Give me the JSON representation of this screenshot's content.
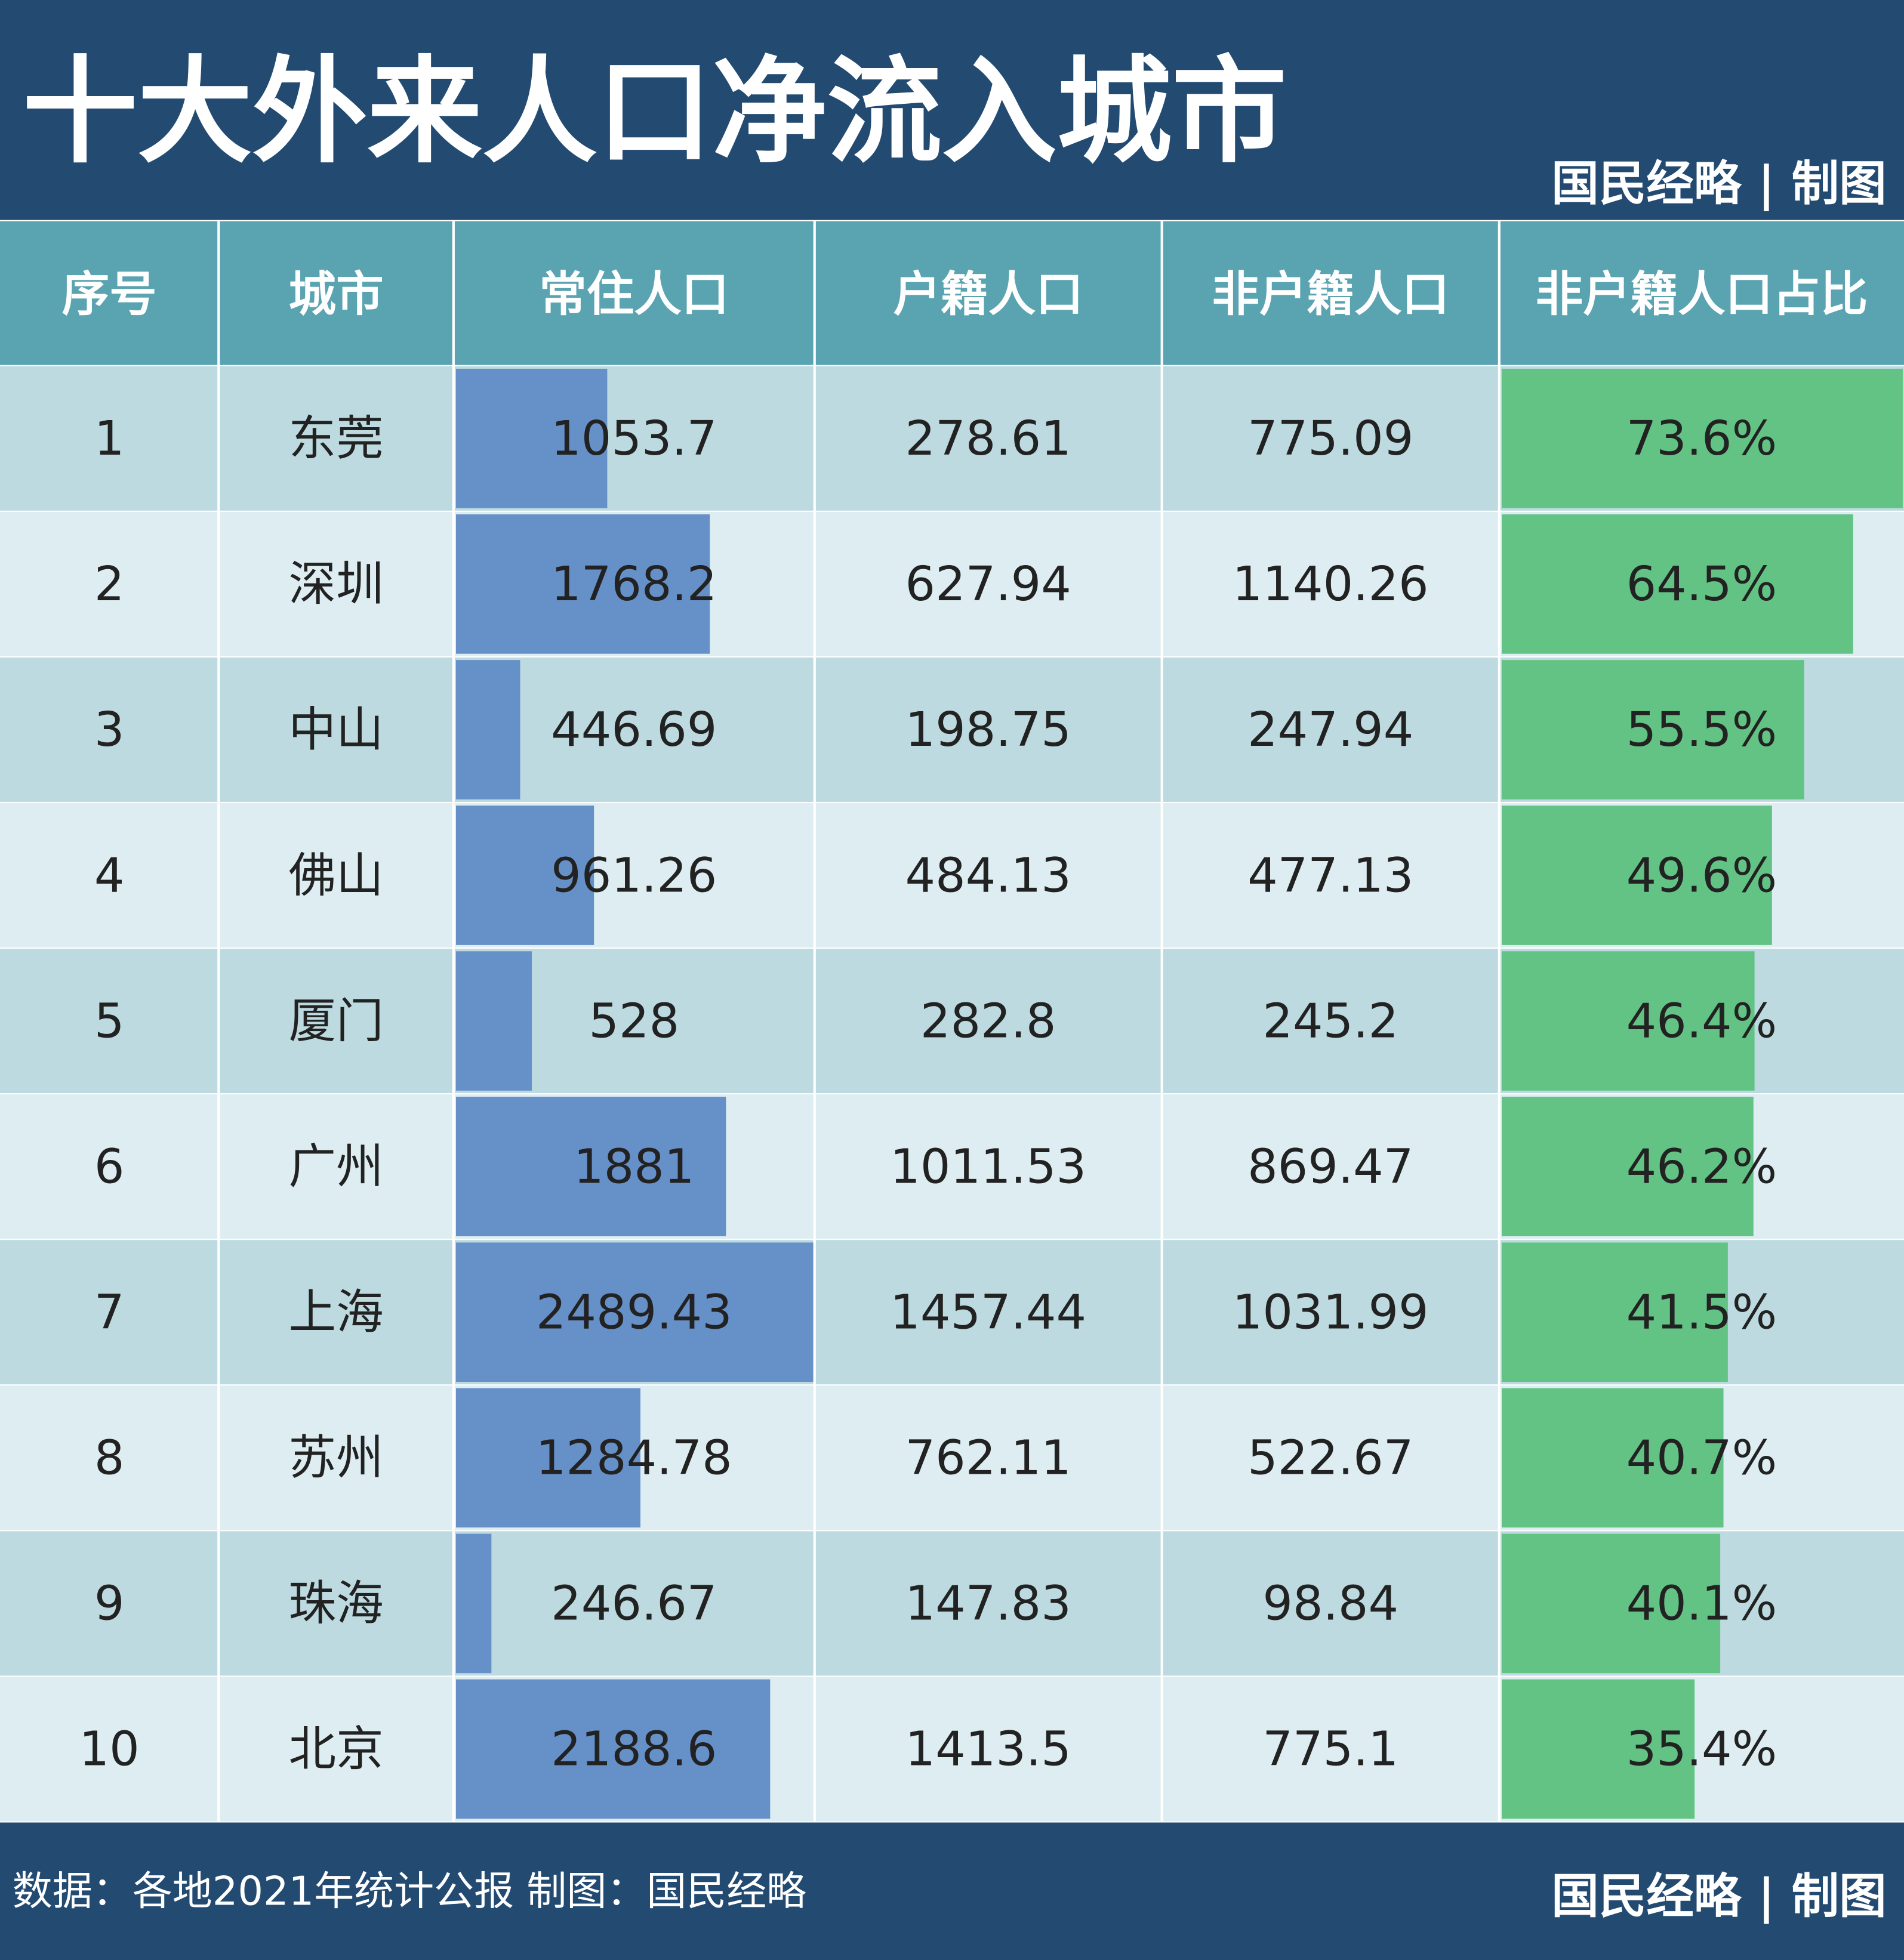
{
  "header": {
    "title": "十大外来人口净流入城市",
    "credit": "国民经略 | 制图"
  },
  "table": {
    "columns": [
      "序号",
      "城市",
      "常住人口",
      "户籍人口",
      "非户籍人口",
      "非户籍人口占比"
    ],
    "rows": [
      [
        "1",
        "东莞",
        "1053.7",
        "278.61",
        "775.09",
        "73.6%"
      ],
      [
        "2",
        "深圳",
        "1768.2",
        "627.94",
        "1140.26",
        "64.5%"
      ],
      [
        "3",
        "中山",
        "446.69",
        "198.75",
        "247.94",
        "55.5%"
      ],
      [
        "4",
        "佛山",
        "961.26",
        "484.13",
        "477.13",
        "49.6%"
      ],
      [
        "5",
        "厦门",
        "528",
        "282.8",
        "245.2",
        "46.4%"
      ],
      [
        "6",
        "广州",
        "1881",
        "1011.53",
        "869.47",
        "46.2%"
      ],
      [
        "7",
        "上海",
        "2489.43",
        "1457.44",
        "1031.99",
        "41.5%"
      ],
      [
        "8",
        "苏州",
        "1284.78",
        "762.11",
        "522.67",
        "40.7%"
      ],
      [
        "9",
        "珠海",
        "246.67",
        "147.83",
        "98.84",
        "40.1%"
      ],
      [
        "10",
        "北京",
        "2188.6",
        "1413.5",
        "775.1",
        "35.4%"
      ]
    ]
  },
  "footer": {
    "source": "数据：各地2021年统计公报  制图：国民经略",
    "credit": "国民经略 | 制图"
  }
}
